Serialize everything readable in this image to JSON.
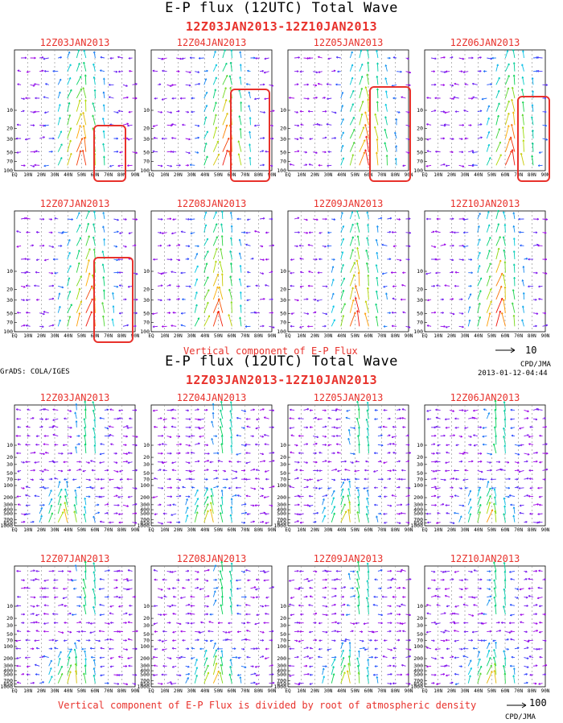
{
  "figure1": {
    "title": "E-P flux (12UTC) Total Wave",
    "period": "12Z03JAN2013-12Z10JAN2013",
    "note": "Vertical component of E-P Flux",
    "legend_value": "10",
    "credit": "CPD/JMA"
  },
  "figure2": {
    "title": "E-P flux (12UTC) Total Wave",
    "period": "12Z03JAN2013-12Z10JAN2013",
    "note": "Vertical component of E-P Flux is divided by root of atmospheric density",
    "legend_value": "100",
    "credit": "CPD/JMA",
    "software": "GrADS: COLA/IGES",
    "timestamp": "2013-01-12-04:44"
  },
  "chart_data": [
    {
      "type": "vector-field",
      "figure": "figure1",
      "panels": [
        "12Z03JAN2013",
        "12Z04JAN2013",
        "12Z05JAN2013",
        "12Z06JAN2013",
        "12Z07JAN2013",
        "12Z08JAN2013",
        "12Z09JAN2013",
        "12Z10JAN2013"
      ],
      "x_ticks": [
        "EQ",
        "10N",
        "20N",
        "30N",
        "40N",
        "50N",
        "60N",
        "70N",
        "80N",
        "90N"
      ],
      "y_ticks": [
        "10",
        "20",
        "30",
        "50",
        "70",
        "100"
      ],
      "y_scale": "log-pressure",
      "highlight_lat_ranges": [
        [
          60,
          80
        ],
        [
          60,
          85
        ],
        [
          62,
          88
        ],
        [
          70,
          90
        ],
        [
          60,
          85
        ],
        null,
        null,
        null
      ]
    },
    {
      "type": "vector-field",
      "figure": "figure2",
      "panels": [
        "12Z03JAN2013",
        "12Z04JAN2013",
        "12Z05JAN2013",
        "12Z06JAN2013",
        "12Z07JAN2013",
        "12Z08JAN2013",
        "12Z09JAN2013",
        "12Z10JAN2013"
      ],
      "x_ticks": [
        "EQ",
        "10N",
        "20N",
        "30N",
        "40N",
        "50N",
        "60N",
        "70N",
        "80N",
        "90N"
      ],
      "y_ticks": [
        "10",
        "20",
        "30",
        "50",
        "70",
        "100",
        "200",
        "300",
        "400",
        "500",
        "700",
        "850",
        "1000"
      ],
      "y_scale": "log-pressure"
    }
  ]
}
